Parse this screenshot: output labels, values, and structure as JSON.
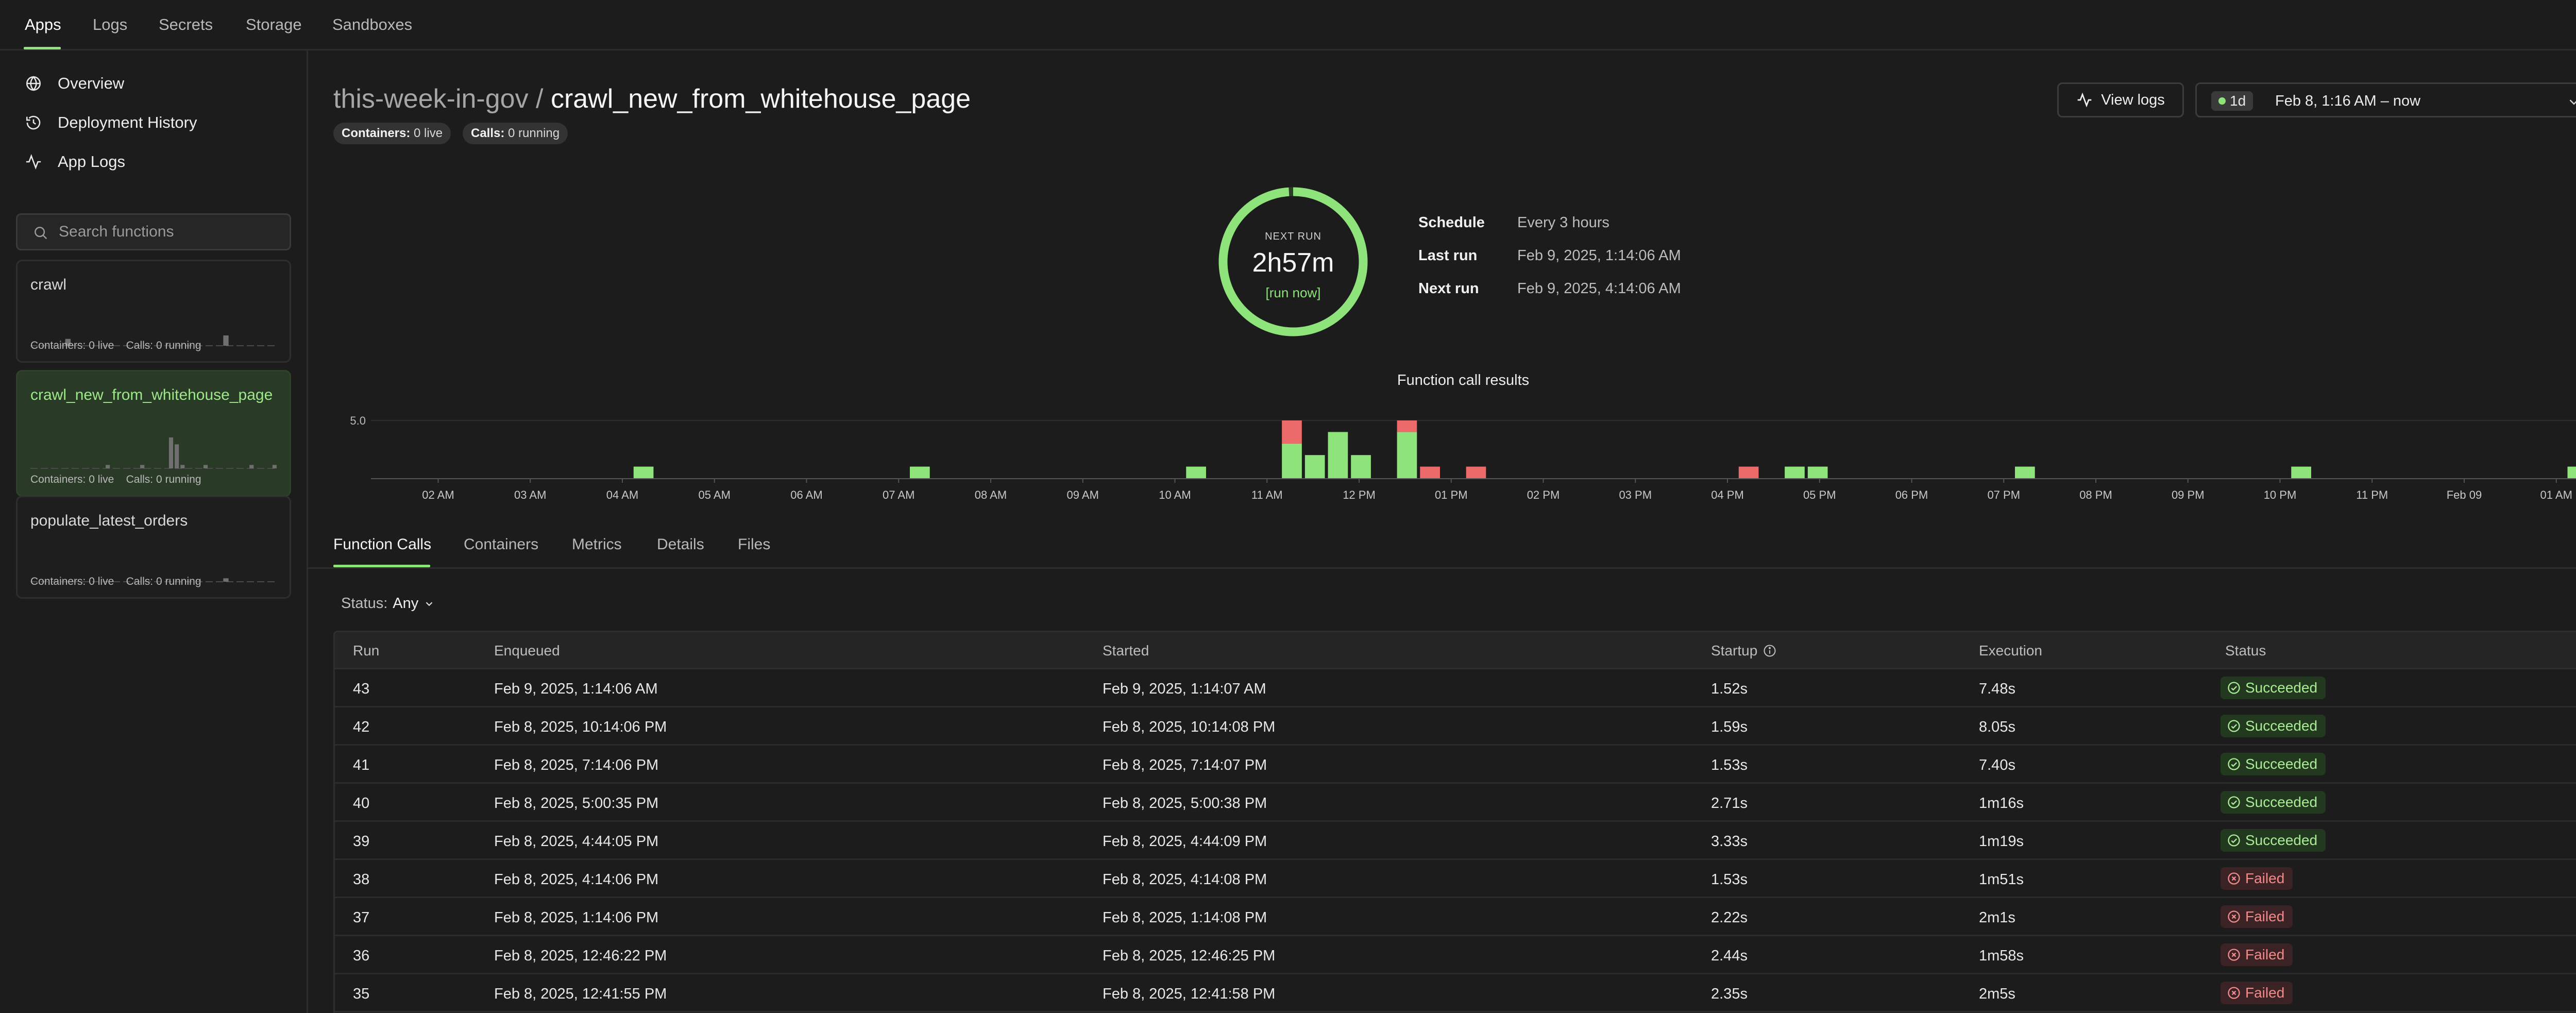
{
  "topnav": {
    "items": [
      "Apps",
      "Logs",
      "Secrets",
      "Storage",
      "Sandboxes"
    ],
    "active_index": 0
  },
  "sidebar": {
    "nav": [
      {
        "label": "Overview",
        "icon": "globe-icon"
      },
      {
        "label": "Deployment History",
        "icon": "history-icon"
      },
      {
        "label": "App Logs",
        "icon": "activity-icon"
      }
    ],
    "search_placeholder": "Search functions",
    "functions": [
      {
        "name": "crawl",
        "containers": "Containers: 0 live",
        "calls": "Calls: 0 running",
        "selected": false,
        "spark": [
          0,
          0,
          0,
          0,
          0,
          2,
          0,
          0,
          0,
          0,
          0,
          0,
          0,
          0,
          0,
          0,
          0,
          0,
          0,
          0,
          0,
          0,
          0,
          0,
          0,
          0,
          0,
          0,
          3,
          0,
          0,
          0,
          0,
          0,
          0,
          0
        ]
      },
      {
        "name": "crawl_new_from_whitehouse_page",
        "containers": "Containers: 0 live",
        "calls": "Calls: 0 running",
        "selected": true,
        "spark": [
          0,
          0,
          0,
          0,
          0,
          0,
          0,
          0,
          0,
          0,
          0,
          0,
          0,
          1,
          0,
          0,
          0,
          0,
          0,
          1,
          0,
          0,
          0,
          0,
          9,
          7,
          1,
          0,
          0,
          0,
          1,
          0,
          0,
          0,
          0,
          0,
          0,
          0,
          1,
          0,
          0,
          0,
          1
        ]
      },
      {
        "name": "populate_latest_orders",
        "containers": "Containers: 0 live",
        "calls": "Calls: 0 running",
        "selected": false,
        "spark": [
          0,
          0,
          0,
          0,
          0,
          0,
          0,
          0,
          0,
          0,
          0,
          0,
          0,
          0,
          0,
          0,
          0,
          0,
          0,
          0,
          0,
          0,
          0,
          0,
          0,
          0,
          0,
          0,
          1,
          0,
          0,
          0,
          0,
          0,
          0,
          0
        ]
      }
    ]
  },
  "header": {
    "app": "this-week-in-gov",
    "separator": "/",
    "function": "crawl_new_from_whitehouse_page",
    "containers_key": "Containers:",
    "containers_val": "0 live",
    "calls_key": "Calls:",
    "calls_val": "0 running",
    "view_logs": "View logs",
    "range_badge": "1d",
    "range_text": "Feb 8, 1:16 AM – now"
  },
  "schedule": {
    "next_run_label": "NEXT RUN",
    "next_run_time": "2h57m",
    "run_now": "[run now]",
    "progress_fraction": 0.99,
    "rows": [
      {
        "key": "Schedule",
        "value": "Every 3 hours"
      },
      {
        "key": "Last run",
        "value": "Feb 9, 2025, 1:14:06 AM"
      },
      {
        "key": "Next run",
        "value": "Feb 9, 2025, 4:14:06 AM"
      }
    ]
  },
  "colors": {
    "accent": "#8ee37a",
    "success": "#8ee37a",
    "failure": "#ec6a6a",
    "background": "#1c1c1c"
  },
  "chart_data": {
    "type": "bar",
    "title": "Function call results",
    "y_tick": 5.0,
    "ylim": [
      0,
      5
    ],
    "grid": false,
    "stacked": true,
    "x_tick_labels": [
      "02 AM",
      "03 AM",
      "04 AM",
      "05 AM",
      "06 AM",
      "07 AM",
      "08 AM",
      "09 AM",
      "10 AM",
      "11 AM",
      "12 PM",
      "01 PM",
      "02 PM",
      "03 PM",
      "04 PM",
      "05 PM",
      "06 PM",
      "07 PM",
      "08 PM",
      "09 PM",
      "10 PM",
      "11 PM",
      "Feb 09",
      "01 AM"
    ],
    "x_tick_hours": [
      2,
      3,
      4,
      5,
      6,
      7,
      8,
      9,
      10,
      11,
      12,
      13,
      14,
      15,
      16,
      17,
      18,
      19,
      20,
      21,
      22,
      23,
      24,
      25
    ],
    "x_range_hours": [
      1.27,
      25.27
    ],
    "bucket_hours": 0.25,
    "series": [
      {
        "name": "Succeeded",
        "color": "#8ee37a"
      },
      {
        "name": "Failed",
        "color": "#ec6a6a"
      }
    ],
    "bars": [
      {
        "hour": 4.23,
        "succeeded": 1,
        "failed": 0
      },
      {
        "hour": 7.23,
        "succeeded": 1,
        "failed": 0
      },
      {
        "hour": 10.23,
        "succeeded": 1,
        "failed": 0
      },
      {
        "hour": 11.27,
        "succeeded": 3,
        "failed": 2
      },
      {
        "hour": 11.52,
        "succeeded": 2,
        "failed": 0
      },
      {
        "hour": 11.77,
        "succeeded": 4,
        "failed": 0
      },
      {
        "hour": 12.02,
        "succeeded": 2,
        "failed": 0
      },
      {
        "hour": 12.52,
        "succeeded": 4,
        "failed": 1
      },
      {
        "hour": 12.77,
        "succeeded": 0,
        "failed": 1
      },
      {
        "hour": 13.27,
        "succeeded": 0,
        "failed": 1
      },
      {
        "hour": 16.23,
        "succeeded": 0,
        "failed": 1
      },
      {
        "hour": 16.73,
        "succeeded": 1,
        "failed": 0
      },
      {
        "hour": 16.98,
        "succeeded": 1,
        "failed": 0
      },
      {
        "hour": 19.23,
        "succeeded": 1,
        "failed": 0
      },
      {
        "hour": 22.23,
        "succeeded": 1,
        "failed": 0
      },
      {
        "hour": 25.23,
        "succeeded": 1,
        "failed": 0
      }
    ]
  },
  "tabs": [
    "Function Calls",
    "Containers",
    "Metrics",
    "Details",
    "Files"
  ],
  "filter": {
    "label": "Status:",
    "value": "Any"
  },
  "table": {
    "headers": [
      "Run",
      "Enqueued",
      "Started",
      "Startup",
      "Execution",
      "Status"
    ],
    "rows": [
      {
        "run": "43",
        "enqueued": "Feb 9, 2025, 1:14:06 AM",
        "started": "Feb 9, 2025, 1:14:07 AM",
        "startup": "1.52s",
        "execution": "7.48s",
        "status": "Succeeded",
        "ok": true
      },
      {
        "run": "42",
        "enqueued": "Feb 8, 2025, 10:14:06 PM",
        "started": "Feb 8, 2025, 10:14:08 PM",
        "startup": "1.59s",
        "execution": "8.05s",
        "status": "Succeeded",
        "ok": true
      },
      {
        "run": "41",
        "enqueued": "Feb 8, 2025, 7:14:06 PM",
        "started": "Feb 8, 2025, 7:14:07 PM",
        "startup": "1.53s",
        "execution": "7.40s",
        "status": "Succeeded",
        "ok": true
      },
      {
        "run": "40",
        "enqueued": "Feb 8, 2025, 5:00:35 PM",
        "started": "Feb 8, 2025, 5:00:38 PM",
        "startup": "2.71s",
        "execution": "1m16s",
        "status": "Succeeded",
        "ok": true
      },
      {
        "run": "39",
        "enqueued": "Feb 8, 2025, 4:44:05 PM",
        "started": "Feb 8, 2025, 4:44:09 PM",
        "startup": "3.33s",
        "execution": "1m19s",
        "status": "Succeeded",
        "ok": true
      },
      {
        "run": "38",
        "enqueued": "Feb 8, 2025, 4:14:06 PM",
        "started": "Feb 8, 2025, 4:14:08 PM",
        "startup": "1.53s",
        "execution": "1m51s",
        "status": "Failed",
        "ok": false
      },
      {
        "run": "37",
        "enqueued": "Feb 8, 2025, 1:14:06 PM",
        "started": "Feb 8, 2025, 1:14:08 PM",
        "startup": "2.22s",
        "execution": "2m1s",
        "status": "Failed",
        "ok": false
      },
      {
        "run": "36",
        "enqueued": "Feb 8, 2025, 12:46:22 PM",
        "started": "Feb 8, 2025, 12:46:25 PM",
        "startup": "2.44s",
        "execution": "1m58s",
        "status": "Failed",
        "ok": false
      },
      {
        "run": "35",
        "enqueued": "Feb 8, 2025, 12:41:55 PM",
        "started": "Feb 8, 2025, 12:41:58 PM",
        "startup": "2.35s",
        "execution": "2m5s",
        "status": "Failed",
        "ok": false
      }
    ]
  }
}
